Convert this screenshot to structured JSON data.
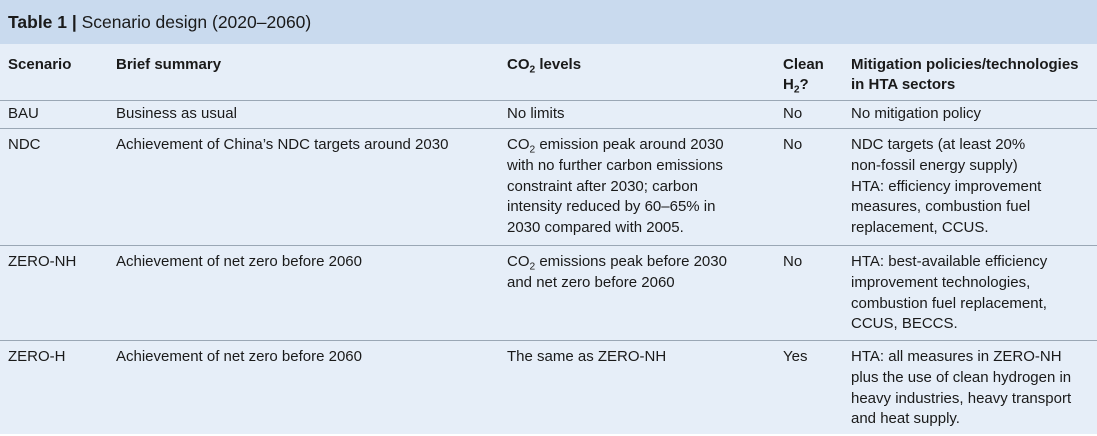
{
  "caption": {
    "number": "Table 1 |",
    "title": " Scenario design (2020–2060)"
  },
  "header": {
    "scenario": "Scenario",
    "summary": "Brief summary",
    "co2_pre": "CO",
    "co2_sub": "2",
    "co2_post": " levels",
    "clean_line1": "Clean",
    "clean_pre": "H",
    "clean_sub": "2",
    "clean_post": "?",
    "mitigation_line1": "Mitigation policies/technologies",
    "mitigation_line2": "in HTA sectors"
  },
  "rows": [
    {
      "scenario": "BAU",
      "summary": "Business as usual",
      "co2": [
        "No limits"
      ],
      "clean": "No",
      "mitigation": [
        "No mitigation policy"
      ]
    },
    {
      "scenario": "NDC",
      "summary": "Achievement of China’s NDC targets around 2030",
      "co2_first_pre": "CO",
      "co2_first_sub": "2",
      "co2_first_post": " emission peak around 2030",
      "co2": [
        "with no further carbon emissions",
        "constraint after 2030; carbon",
        "intensity reduced by 60–65% in",
        "2030 compared with 2005."
      ],
      "clean": "No",
      "mitigation": [
        "NDC targets (at least 20%",
        "non-fossil energy supply)",
        "HTA: efficiency improvement",
        "measures, combustion fuel",
        "replacement, CCUS."
      ]
    },
    {
      "scenario": "ZERO-NH",
      "summary": "Achievement of net zero before 2060",
      "co2_first_pre": "CO",
      "co2_first_sub": "2",
      "co2_first_post": " emissions peak before 2030",
      "co2": [
        "and net zero before 2060"
      ],
      "clean": "No",
      "mitigation": [
        "HTA: best-available efficiency",
        "improvement technologies,",
        "combustion fuel replacement,",
        "CCUS, BECCS."
      ]
    },
    {
      "scenario": "ZERO-H",
      "summary": "Achievement of net zero before 2060",
      "co2": [
        "The same as ZERO-NH"
      ],
      "clean": "Yes",
      "mitigation": [
        "HTA: all measures in ZERO-NH",
        "plus the use of clean hydrogen in",
        "heavy industries, heavy transport",
        "and heat supply."
      ]
    }
  ]
}
